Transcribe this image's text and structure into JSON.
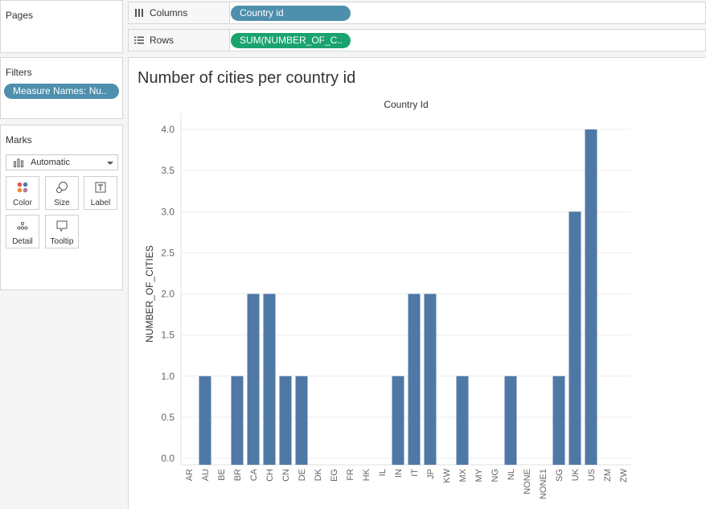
{
  "pages": {
    "title": "Pages"
  },
  "filters": {
    "title": "Filters",
    "pill": "Measure Names: Nu.."
  },
  "marks": {
    "title": "Marks",
    "type_select": "Automatic",
    "buttons": [
      {
        "label": "Color",
        "icon": "color-dots-icon"
      },
      {
        "label": "Size",
        "icon": "size-icon"
      },
      {
        "label": "Label",
        "icon": "label-icon"
      },
      {
        "label": "Detail",
        "icon": "detail-icon"
      },
      {
        "label": "Tooltip",
        "icon": "tooltip-icon"
      }
    ]
  },
  "shelves": {
    "columns": {
      "label": "Columns",
      "pill": "Country id"
    },
    "rows": {
      "label": "Rows",
      "pill": "SUM(NUMBER_OF_C.."
    }
  },
  "sheet": {
    "title": "Number of cities per country id"
  },
  "colors": {
    "bar": "#4e79a7",
    "dimension_pill": "#4d8fac",
    "measure_pill": "#1aa36f"
  },
  "chart_data": {
    "type": "bar",
    "title": "Number of cities per country id",
    "xlabel": "Country Id",
    "ylabel": "NUMBER_OF_CITIES",
    "ylim": [
      0,
      4
    ],
    "yticks": [
      "0.0",
      "0.5",
      "1.0",
      "1.5",
      "2.0",
      "2.5",
      "3.0",
      "3.5",
      "4.0"
    ],
    "categories": [
      "AR",
      "AU",
      "BE",
      "BR",
      "CA",
      "CH",
      "CN",
      "DE",
      "DK",
      "EG",
      "FR",
      "HK",
      "IL",
      "IN",
      "IT",
      "JP",
      "KW",
      "MX",
      "MY",
      "NG",
      "NL",
      "NONE",
      "NONE1",
      "SG",
      "UK",
      "US",
      "ZM",
      "ZW"
    ],
    "values": [
      0,
      1,
      0,
      1,
      2,
      2,
      1,
      1,
      0,
      0,
      0,
      0,
      0,
      1,
      2,
      2,
      0,
      1,
      0,
      0,
      1,
      0,
      0,
      1,
      3,
      4,
      0,
      0
    ],
    "grid": true
  }
}
